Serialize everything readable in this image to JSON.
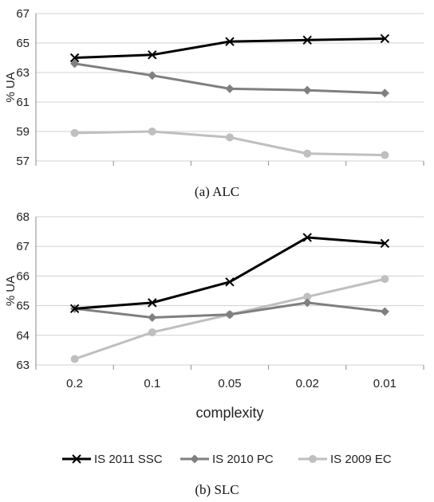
{
  "chart_data": [
    {
      "type": "line",
      "caption": "(a) ALC",
      "ylabel": "% UA",
      "xlabel": "",
      "ylim": [
        57,
        67
      ],
      "yticks": [
        57,
        59,
        61,
        63,
        65,
        67
      ],
      "categories": [
        "0.2",
        "0.1",
        "0.05",
        "0.02",
        "0.01"
      ],
      "show_x_tick_labels": false,
      "grid": "horizontal",
      "series": [
        {
          "name": "IS 2011 SSC",
          "marker": "x",
          "color": "#000000",
          "values": [
            64.0,
            64.2,
            65.1,
            65.2,
            65.3
          ]
        },
        {
          "name": "IS 2010 PC",
          "marker": "diamond",
          "color": "#7f7f7f",
          "values": [
            63.6,
            62.8,
            61.9,
            61.8,
            61.6
          ]
        },
        {
          "name": "IS 2009 EC",
          "marker": "circle",
          "color": "#bfbfbf",
          "values": [
            58.9,
            59.0,
            58.6,
            57.5,
            57.4
          ]
        }
      ]
    },
    {
      "type": "line",
      "caption": "(b) SLC",
      "ylabel": "% UA",
      "xlabel": "complexity",
      "ylim": [
        63,
        68
      ],
      "yticks": [
        63,
        64,
        65,
        66,
        67,
        68
      ],
      "categories": [
        "0.2",
        "0.1",
        "0.05",
        "0.02",
        "0.01"
      ],
      "show_x_tick_labels": true,
      "grid": "horizontal",
      "legend": "bottom",
      "series": [
        {
          "name": "IS 2011 SSC",
          "marker": "x",
          "color": "#000000",
          "values": [
            64.9,
            65.1,
            65.8,
            67.3,
            67.1
          ]
        },
        {
          "name": "IS 2010 PC",
          "marker": "diamond",
          "color": "#7f7f7f",
          "values": [
            64.9,
            64.6,
            64.7,
            65.1,
            64.8
          ]
        },
        {
          "name": "IS 2009 EC",
          "marker": "circle",
          "color": "#bfbfbf",
          "values": [
            63.2,
            64.1,
            64.7,
            65.3,
            65.9
          ]
        }
      ]
    }
  ]
}
